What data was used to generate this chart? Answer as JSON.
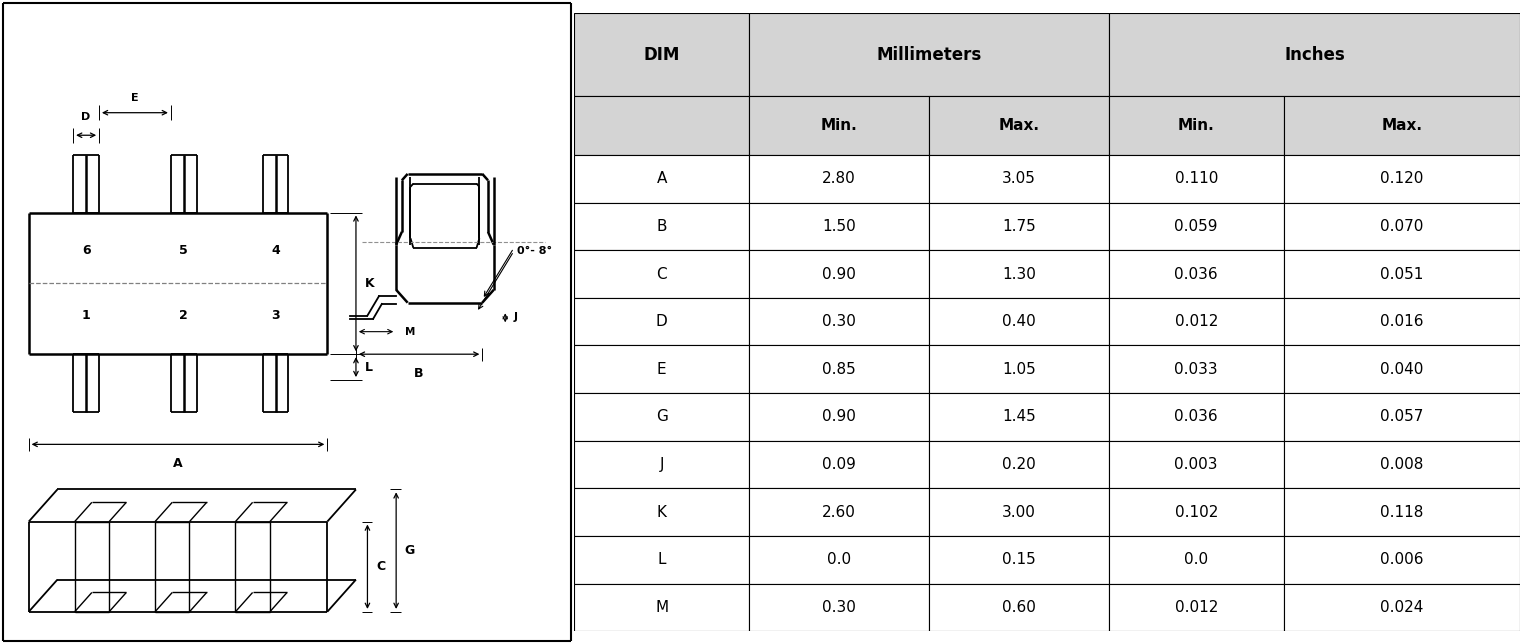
{
  "table": {
    "rows": [
      [
        "A",
        "2.80",
        "3.05",
        "0.110",
        "0.120"
      ],
      [
        "B",
        "1.50",
        "1.75",
        "0.059",
        "0.070"
      ],
      [
        "C",
        "0.90",
        "1.30",
        "0.036",
        "0.051"
      ],
      [
        "D",
        "0.30",
        "0.40",
        "0.012",
        "0.016"
      ],
      [
        "E",
        "0.85",
        "1.05",
        "0.033",
        "0.040"
      ],
      [
        "G",
        "0.90",
        "1.45",
        "0.036",
        "0.057"
      ],
      [
        "J",
        "0.09",
        "0.20",
        "0.003",
        "0.008"
      ],
      [
        "K",
        "2.60",
        "3.00",
        "0.102",
        "0.118"
      ],
      [
        "L",
        "0.0",
        "0.15",
        "0.0",
        "0.006"
      ],
      [
        "M",
        "0.30",
        "0.60",
        "0.012",
        "0.024"
      ]
    ]
  },
  "header_bg": "#d4d4d4",
  "text_color": "#000000"
}
